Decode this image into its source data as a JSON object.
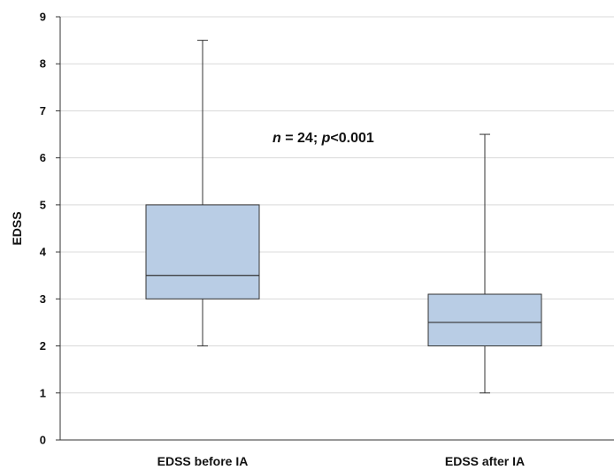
{
  "chart_data": {
    "type": "boxplot",
    "ylabel": "EDSS",
    "ylim": [
      0,
      9
    ],
    "yticks": [
      "0",
      "1",
      "2",
      "3",
      "4",
      "5",
      "6",
      "7",
      "8",
      "9"
    ],
    "grid": "horizontal",
    "categories": [
      "EDSS before IA",
      "EDSS after IA"
    ],
    "boxes": [
      {
        "category": "EDSS before IA",
        "min": 2,
        "q1": 3,
        "median": 3.5,
        "q3": 5,
        "max": 8.5
      },
      {
        "category": "EDSS after IA",
        "min": 1,
        "q1": 2,
        "median": 2.5,
        "q3": 3.1,
        "max": 6.5
      }
    ],
    "annotation": {
      "n_symbol": "n",
      "n_rest": " = 24; ",
      "p_symbol": "p",
      "p_rest": "<0.001"
    },
    "colors": {
      "box_fill": "#b9cde5",
      "box_stroke": "#333333",
      "grid": "#d9d9d9"
    }
  }
}
